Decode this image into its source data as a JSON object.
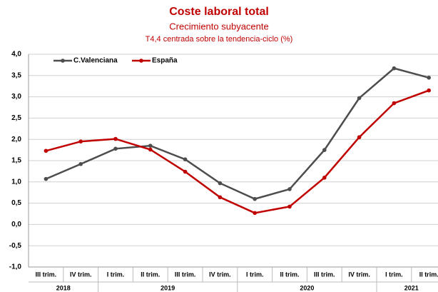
{
  "chart_data": {
    "type": "line",
    "title": "Coste laboral total",
    "subtitle": "Crecimiento subyacente",
    "note": "T4,4 centrada sobre la tendencia-ciclo (%)",
    "categories": [
      "III trim.",
      "IV trim.",
      "I trim.",
      "II trim.",
      "III trim.",
      "IV trim.",
      "I trim.",
      "II trim.",
      "III trim.",
      "IV trim.",
      "I trim.",
      "II trim."
    ],
    "groups": [
      {
        "label": "2018",
        "count": 2
      },
      {
        "label": "2019",
        "count": 4
      },
      {
        "label": "2020",
        "count": 4
      },
      {
        "label": "2021",
        "count": 2
      }
    ],
    "series": [
      {
        "name": "C.Valenciana",
        "color": "#4d4d4d",
        "values": [
          1.07,
          1.42,
          1.78,
          1.85,
          1.53,
          0.97,
          0.6,
          0.83,
          1.75,
          2.97,
          3.67,
          3.45
        ]
      },
      {
        "name": "España",
        "color": "#c00000",
        "values": [
          1.73,
          1.95,
          2.01,
          1.76,
          1.24,
          0.64,
          0.27,
          0.42,
          1.1,
          2.05,
          2.85,
          3.15
        ]
      }
    ],
    "ylim": [
      -1,
      4
    ],
    "yticks": [
      {
        "value": -1,
        "label": "-1,0"
      },
      {
        "value": -0.5,
        "label": "-0,5"
      },
      {
        "value": 0,
        "label": "0,0"
      },
      {
        "value": 0.5,
        "label": "0,5"
      },
      {
        "value": 1,
        "label": "1,0"
      },
      {
        "value": 1.5,
        "label": "1,5"
      },
      {
        "value": 2,
        "label": "2,0"
      },
      {
        "value": 2.5,
        "label": "2,5"
      },
      {
        "value": 3,
        "label": "3,0"
      },
      {
        "value": 3.5,
        "label": "3,5"
      },
      {
        "value": 4,
        "label": "4,0"
      }
    ],
    "grid": true,
    "legend": "upper left"
  }
}
